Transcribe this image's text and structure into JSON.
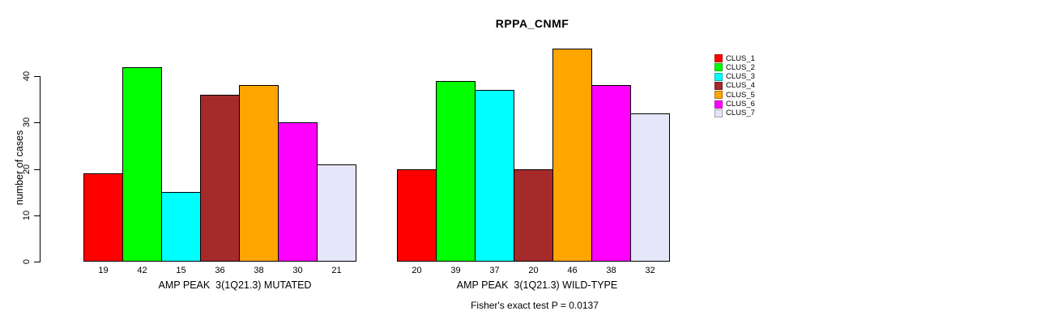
{
  "title": "RPPA_CNMF",
  "footer_note": "Fisher's exact test P = 0.0137",
  "legend": {
    "items": [
      {
        "label": "CLUS_1",
        "color": "#FF0000"
      },
      {
        "label": "CLUS_2",
        "color": "#00FF00"
      },
      {
        "label": "CLUS_3",
        "color": "#00FFFF"
      },
      {
        "label": "CLUS_4",
        "color": "#A52A2A"
      },
      {
        "label": "CLUS_5",
        "color": "#FFA500"
      },
      {
        "label": "CLUS_6",
        "color": "#FF00FF"
      },
      {
        "label": "CLUS_7",
        "color": "#E6E6FA"
      }
    ]
  },
  "chart_data": {
    "type": "bar",
    "title": "RPPA_CNMF",
    "ylabel": "number of cases",
    "xlabel": "",
    "yticks": [
      0,
      10,
      20,
      30,
      40
    ],
    "ylim": [
      0,
      46
    ],
    "grid": false,
    "legend_position": "right",
    "series": [
      "CLUS_1",
      "CLUS_2",
      "CLUS_3",
      "CLUS_4",
      "CLUS_5",
      "CLUS_6",
      "CLUS_7"
    ],
    "series_colors": [
      "#FF0000",
      "#00FF00",
      "#00FFFF",
      "#A52A2A",
      "#FFA500",
      "#FF00FF",
      "#E6E6FA"
    ],
    "groups": [
      {
        "label": "AMP PEAK  3(1Q21.3) MUTATED",
        "values": [
          19,
          42,
          15,
          36,
          38,
          30,
          21
        ]
      },
      {
        "label": "AMP PEAK  3(1Q21.3) WILD-TYPE",
        "values": [
          20,
          39,
          37,
          20,
          46,
          38,
          32
        ]
      }
    ],
    "annotation": "Fisher's exact test P = 0.0137"
  }
}
